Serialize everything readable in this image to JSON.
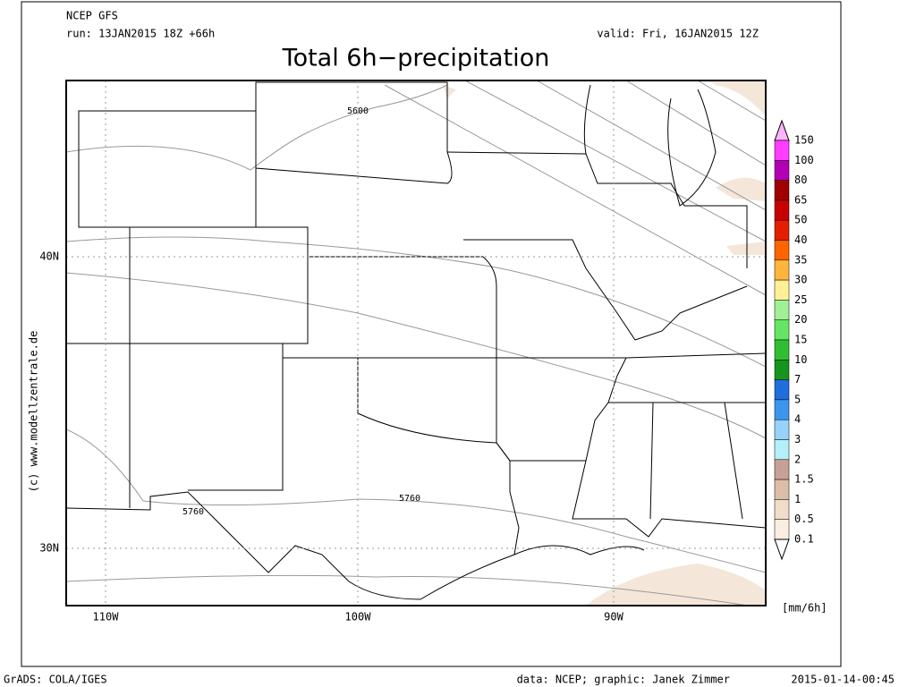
{
  "header": {
    "model": "NCEP GFS",
    "run": "run: 13JAN2015 18Z +66h",
    "valid": "valid: Fri, 16JAN2015 12Z",
    "title": "Total 6h−precipitation"
  },
  "map": {
    "lat_labels": [
      "40N",
      "30N"
    ],
    "lon_labels": [
      "110W",
      "100W",
      "90W"
    ],
    "contour_labels": [
      "5600",
      "5760",
      "5760"
    ],
    "copyright": "(c) www.modellzentrale.de"
  },
  "legend": {
    "unit": "[mm/6h]",
    "labels": [
      "150",
      "100",
      "80",
      "65",
      "50",
      "40",
      "35",
      "30",
      "25",
      "20",
      "15",
      "10",
      "7",
      "5",
      "4",
      "3",
      "2",
      "1.5",
      "1",
      "0.5",
      "0.1"
    ],
    "colors": [
      "#ffb4ff",
      "#ff3cff",
      "#b400b4",
      "#a00000",
      "#c80000",
      "#e61e00",
      "#ff6400",
      "#ffb43c",
      "#fff096",
      "#a0f096",
      "#64e664",
      "#32be32",
      "#14961e",
      "#1e6edc",
      "#3c96f0",
      "#96d2fa",
      "#b4f0fa",
      "#c8a096",
      "#dcbea8",
      "#f0dcc8",
      "#faeee0"
    ]
  },
  "footer": {
    "software": "GrADS: COLA/IGES",
    "credit": "data: NCEP; graphic: Janek Zimmer",
    "timestamp": "2015-01-14-00:45"
  }
}
